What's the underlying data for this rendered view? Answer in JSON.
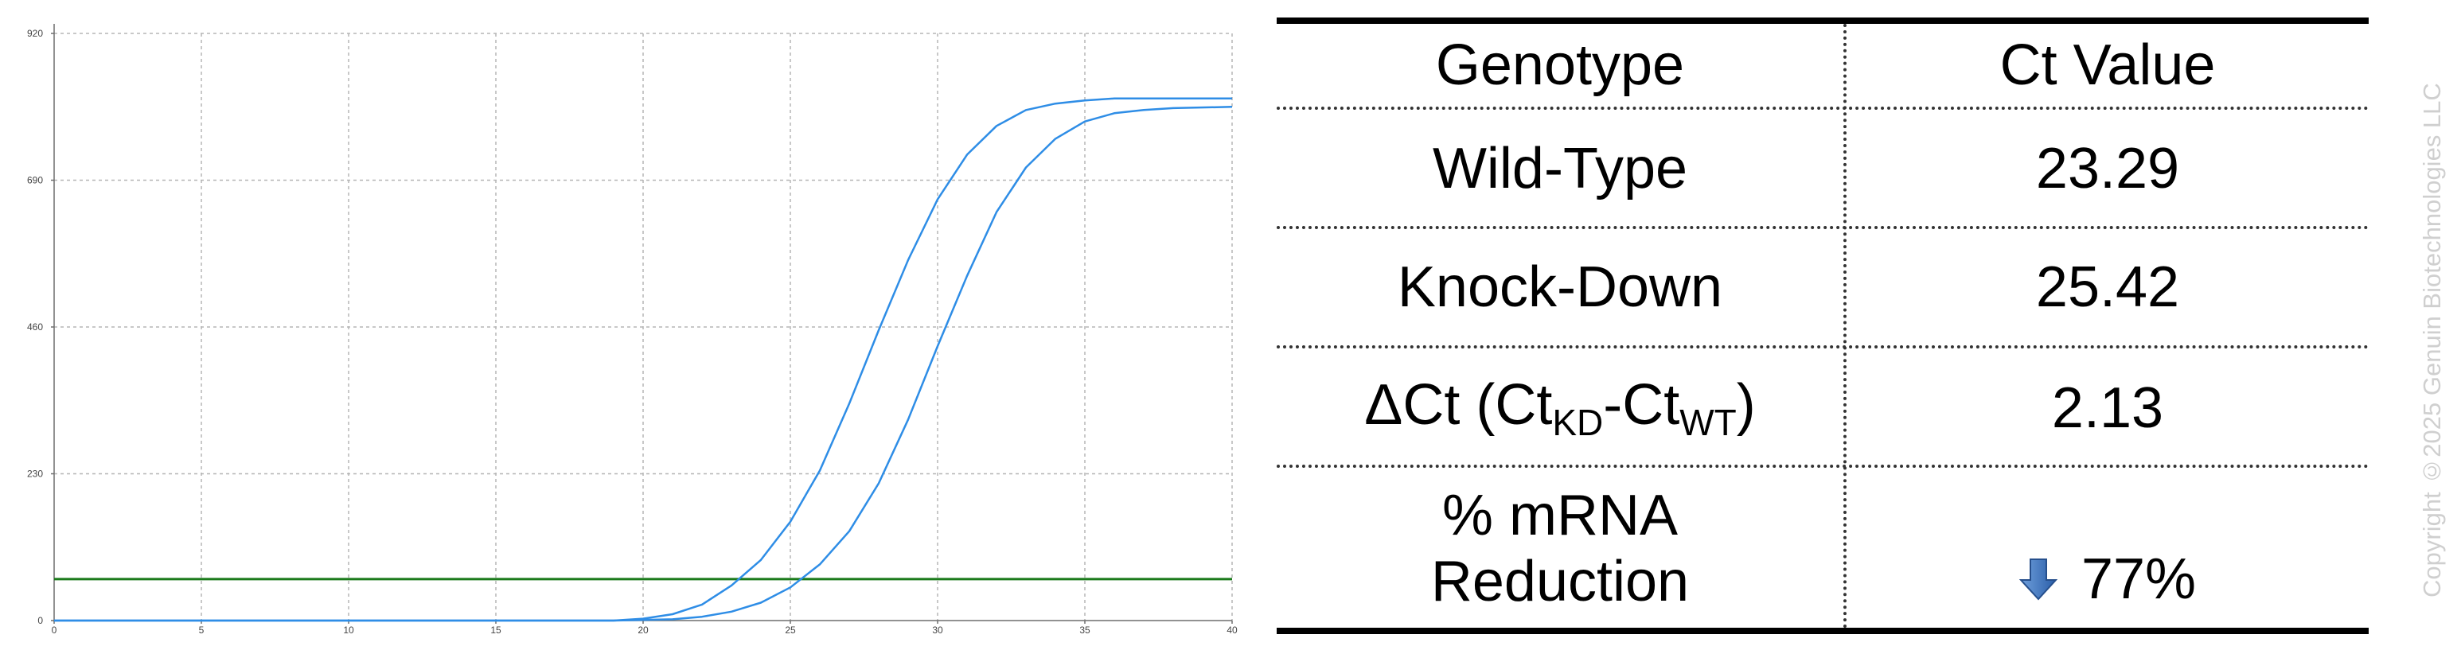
{
  "chart_data": {
    "type": "line",
    "title": "",
    "xlabel": "",
    "ylabel": "",
    "xlim": [
      0,
      40
    ],
    "ylim": [
      0,
      920
    ],
    "x_ticks": [
      0,
      5,
      10,
      15,
      20,
      25,
      30,
      35,
      40
    ],
    "y_ticks": [
      0,
      230,
      460,
      690,
      920
    ],
    "grid": true,
    "legend": "none",
    "colors": {
      "curves": "#2e8de6",
      "threshold": "#1a7a1a",
      "grid": "#b5b5b5",
      "axis": "#6e6e6e"
    },
    "threshold": 65,
    "series": [
      {
        "x": [
          0,
          5,
          10,
          15,
          19,
          20,
          21,
          22,
          23,
          24,
          25,
          26,
          27,
          28,
          29,
          30,
          31,
          32,
          33,
          34,
          35,
          36,
          37,
          38,
          40
        ],
        "y": [
          0,
          0,
          0,
          0,
          0,
          3,
          10,
          25,
          55,
          95,
          155,
          235,
          340,
          455,
          565,
          660,
          730,
          775,
          800,
          810,
          815,
          818,
          818,
          818,
          818
        ]
      },
      {
        "x": [
          0,
          5,
          10,
          15,
          19,
          21,
          22,
          23,
          24,
          25,
          26,
          27,
          28,
          29,
          30,
          31,
          32,
          33,
          34,
          35,
          36,
          37,
          38,
          40
        ],
        "y": [
          0,
          0,
          0,
          0,
          0,
          2,
          6,
          14,
          28,
          52,
          88,
          140,
          215,
          315,
          430,
          540,
          640,
          710,
          755,
          782,
          795,
          800,
          803,
          805
        ]
      }
    ]
  },
  "table": {
    "headers": [
      "Genotype",
      "Ct Value"
    ],
    "rows": [
      {
        "label": "Wild-Type",
        "value": "23.29"
      },
      {
        "label": "Knock-Down",
        "value": "25.42"
      },
      {
        "label_main": "ΔCt (Ct",
        "label_sub1": "KD",
        "label_mid": "-Ct",
        "label_sub2": "WT",
        "label_end": ")",
        "value": "2.13"
      },
      {
        "label_line1": "% mRNA",
        "label_line2": "Reduction",
        "value": "77%",
        "value_icon": "down-arrow-icon"
      }
    ]
  },
  "copyright": "Copyright ©2025 Genuin Biotechnologies LLC"
}
